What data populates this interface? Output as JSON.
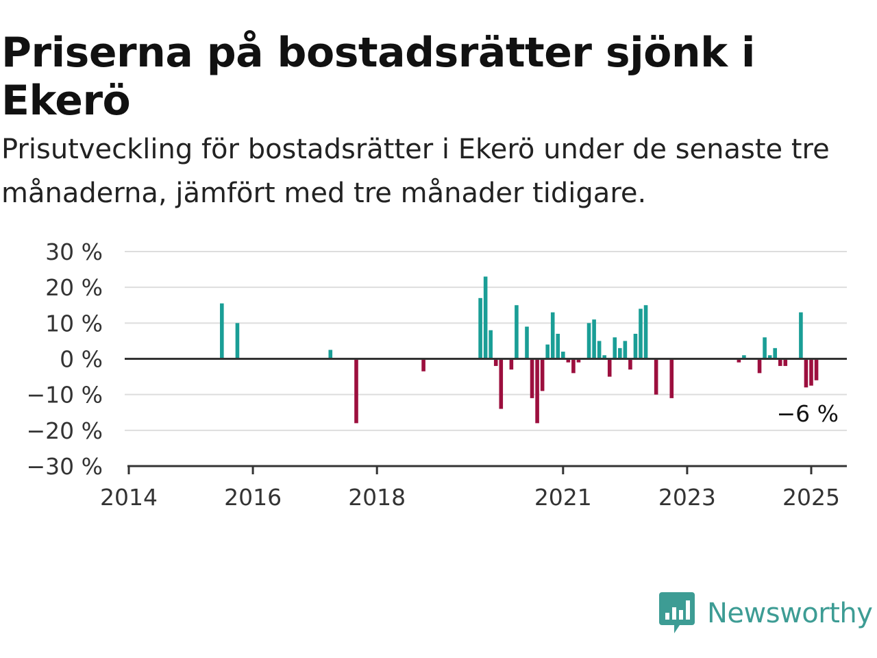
{
  "page": {
    "title": "Priserna på bostadsrätter sjönk i Ekerö",
    "subtitle": "Prisutveckling för bostadsrätter i Ekerö under de senaste tre månaderna, jämfört med tre månader tidigare.",
    "brand": "Newsworthy"
  },
  "colors": {
    "positive": "#1a9e96",
    "negative": "#9c0f3e",
    "grid": "#dddddd",
    "axis": "#333333",
    "brand": "#3d9c94"
  },
  "chart_data": {
    "type": "bar",
    "title": "Priserna på bostadsrätter sjönk i Ekerö",
    "subtitle": "Prisutveckling för bostadsrätter i Ekerö under de senaste tre månaderna, jämfört med tre månader tidigare.",
    "xlabel": "",
    "ylabel": "",
    "ylim": [
      -30,
      30
    ],
    "xlim": [
      "2014-01",
      "2025-06"
    ],
    "y_ticks": [
      30,
      20,
      10,
      0,
      -10,
      -20,
      -30
    ],
    "y_tick_labels": [
      "30 %",
      "20 %",
      "10 %",
      "0 %",
      "−10 %",
      "−20 %",
      "−30 %"
    ],
    "x_ticks": [
      "2014-01",
      "2016-01",
      "2018-01",
      "2021-01",
      "2023-01",
      "2025-01"
    ],
    "x_tick_labels": [
      "2014",
      "2016",
      "2018",
      "2021",
      "2023",
      "2025"
    ],
    "grid": true,
    "legend": "none",
    "annotation": {
      "x": "2025-02",
      "y": -6,
      "text": "−6 %"
    },
    "series": [
      {
        "x": [
          "2015-07",
          "2015-10",
          "2017-04",
          "2017-09",
          "2018-10",
          "2019-09",
          "2019-10",
          "2019-11",
          "2019-12",
          "2020-01",
          "2020-03",
          "2020-04",
          "2020-06",
          "2020-07",
          "2020-08",
          "2020-09",
          "2020-10",
          "2020-11",
          "2020-12",
          "2021-01",
          "2021-02",
          "2021-03",
          "2021-04",
          "2021-06",
          "2021-07",
          "2021-08",
          "2021-09",
          "2021-10",
          "2021-11",
          "2021-12",
          "2022-01",
          "2022-02",
          "2022-03",
          "2022-04",
          "2022-05",
          "2022-07",
          "2022-10",
          "2023-11",
          "2023-12",
          "2024-03",
          "2024-04",
          "2024-05",
          "2024-06",
          "2024-07",
          "2024-08",
          "2024-11",
          "2024-12",
          "2025-01",
          "2025-02"
        ],
        "values": [
          15.5,
          10,
          2.5,
          -18,
          -3.5,
          17,
          23,
          8,
          -2,
          -14,
          -3,
          15,
          9,
          -11,
          -18,
          -9,
          4,
          13,
          7,
          2,
          -1,
          -4,
          -1,
          10,
          11,
          5,
          1,
          -5,
          6,
          3,
          5,
          -3,
          7,
          14,
          15,
          -10,
          -11,
          -1,
          1,
          -4,
          6,
          1,
          3,
          -2,
          -2,
          13,
          -8,
          -7.5,
          -6
        ]
      }
    ]
  }
}
